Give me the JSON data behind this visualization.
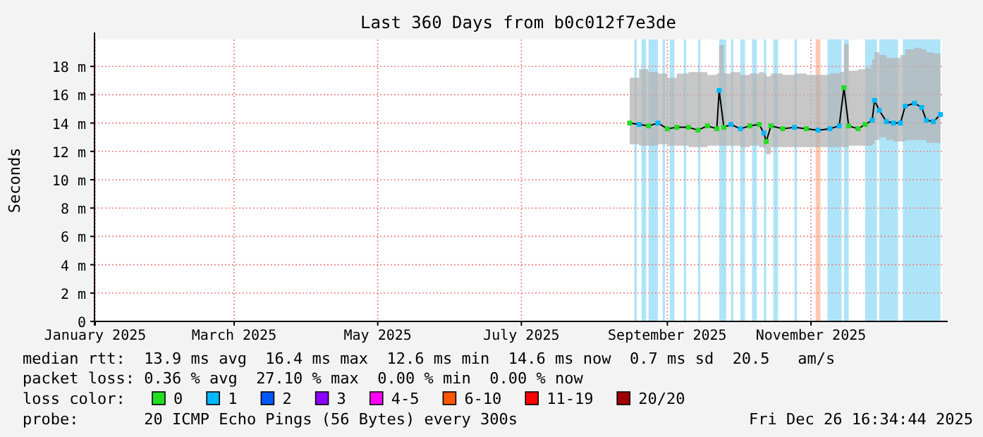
{
  "chart_data": {
    "type": "line",
    "title": "Last 360 Days from b0c012f7e3de",
    "ylabel": "Seconds",
    "legend_title": "loss color:",
    "xlim": [
      "2024-12-31T16:34",
      "2025-12-26T16:34"
    ],
    "xticks": [
      {
        "value": "2025-01-01",
        "label": "January 2025"
      },
      {
        "value": "2025-03-01",
        "label": "March 2025"
      },
      {
        "value": "2025-05-01",
        "label": "May 2025"
      },
      {
        "value": "2025-07-01",
        "label": "July 2025"
      },
      {
        "value": "2025-09-01",
        "label": "September 2025"
      },
      {
        "value": "2025-11-01",
        "label": "November 2025"
      }
    ],
    "ylim": [
      0,
      19.9
    ],
    "yticks": [
      0,
      {
        "value": 2,
        "label": "2 m"
      },
      {
        "value": 4,
        "label": "4 m"
      },
      {
        "value": 6,
        "label": "6 m"
      },
      {
        "value": 8,
        "label": "8 m"
      },
      {
        "value": 10,
        "label": "10 m"
      },
      {
        "value": 12,
        "label": "12 m"
      },
      {
        "value": 14,
        "label": "14 m"
      },
      {
        "value": 16,
        "label": "16 m"
      },
      {
        "value": 18,
        "label": "18 m"
      }
    ],
    "grid": true,
    "legend": "bottom",
    "line_style": "solid",
    "bands": [
      {
        "axis": "x",
        "from": "2025-08-18",
        "to": "2025-08-19",
        "color": "#aee4f8"
      },
      {
        "axis": "x",
        "from": "2025-08-21",
        "to": "2025-08-23",
        "color": "#aee4f8"
      },
      {
        "axis": "x",
        "from": "2025-08-24",
        "to": "2025-08-28",
        "color": "#aee4f8"
      },
      {
        "axis": "x",
        "from": "2025-08-30",
        "to": "2025-08-31",
        "color": "#aee4f8"
      },
      {
        "axis": "x",
        "from": "2025-09-02",
        "to": "2025-09-04",
        "color": "#aee4f8"
      },
      {
        "axis": "x",
        "from": "2025-09-08",
        "to": "2025-09-09",
        "color": "#aee4f8"
      },
      {
        "axis": "x",
        "from": "2025-09-14",
        "to": "2025-09-15",
        "color": "#aee4f8"
      },
      {
        "axis": "x",
        "from": "2025-09-23",
        "to": "2025-09-26",
        "color": "#aee4f8"
      },
      {
        "axis": "x",
        "from": "2025-09-28",
        "to": "2025-09-29",
        "color": "#aee4f8"
      },
      {
        "axis": "x",
        "from": "2025-10-02",
        "to": "2025-10-04",
        "color": "#aee4f8"
      },
      {
        "axis": "x",
        "from": "2025-10-07",
        "to": "2025-10-09",
        "color": "#aee4f8"
      },
      {
        "axis": "x",
        "from": "2025-10-12",
        "to": "2025-10-13",
        "color": "#aee4f8"
      },
      {
        "axis": "x",
        "from": "2025-10-16",
        "to": "2025-10-18",
        "color": "#aee4f8"
      },
      {
        "axis": "x",
        "from": "2025-10-25",
        "to": "2025-10-26",
        "color": "#aee4f8"
      },
      {
        "axis": "x",
        "from": "2025-11-03",
        "to": "2025-11-05",
        "color": "#fcc8b0"
      },
      {
        "axis": "x",
        "from": "2025-11-08",
        "to": "2025-11-14",
        "color": "#aee4f8"
      },
      {
        "axis": "x",
        "from": "2025-11-15",
        "to": "2025-11-17",
        "color": "#aee4f8"
      },
      {
        "axis": "x",
        "from": "2025-11-24",
        "to": "2025-11-29",
        "color": "#aee4f8"
      },
      {
        "axis": "x",
        "from": "2025-11-30",
        "to": "2025-12-08",
        "color": "#aee4f8"
      },
      {
        "axis": "x",
        "from": "2025-12-10",
        "to": "2025-12-26",
        "color": "#aee4f8"
      }
    ],
    "series": [
      {
        "color": "#000000",
        "x": [
          "2025-08-16",
          "2025-08-20",
          "2025-08-24",
          "2025-08-28",
          "2025-09-01",
          "2025-09-05",
          "2025-09-10",
          "2025-09-14",
          "2025-09-18",
          "2025-09-22",
          "2025-09-23",
          "2025-09-25",
          "2025-09-28",
          "2025-10-02",
          "2025-10-06",
          "2025-10-10",
          "2025-10-12",
          "2025-10-13",
          "2025-10-15",
          "2025-10-20",
          "2025-10-25",
          "2025-10-30",
          "2025-11-04",
          "2025-11-09",
          "2025-11-13",
          "2025-11-15",
          "2025-11-17",
          "2025-11-21",
          "2025-11-24",
          "2025-11-27",
          "2025-11-28",
          "2025-11-30",
          "2025-12-03",
          "2025-12-06",
          "2025-12-09",
          "2025-12-11",
          "2025-12-15",
          "2025-12-18",
          "2025-12-20",
          "2025-12-23",
          "2025-12-26"
        ],
        "values": [
          14.0,
          13.9,
          13.8,
          14.0,
          13.6,
          13.7,
          13.7,
          13.5,
          13.8,
          13.6,
          16.3,
          13.7,
          13.9,
          13.6,
          13.8,
          13.9,
          13.3,
          12.7,
          13.8,
          13.6,
          13.7,
          13.6,
          13.5,
          13.6,
          13.8,
          16.5,
          13.8,
          13.6,
          13.9,
          14.2,
          15.6,
          14.9,
          14.1,
          14.0,
          14.0,
          15.2,
          15.4,
          15.1,
          14.2,
          14.1,
          14.6
        ],
        "lower": [
          12.5,
          12.4,
          12.4,
          12.5,
          12.4,
          12.4,
          12.3,
          12.3,
          12.4,
          12.4,
          12.4,
          12.4,
          12.4,
          12.3,
          12.4,
          12.3,
          12.2,
          11.8,
          12.3,
          12.3,
          12.3,
          12.3,
          12.3,
          12.3,
          12.3,
          12.3,
          12.4,
          12.4,
          12.4,
          12.5,
          12.8,
          13.0,
          12.8,
          12.7,
          12.7,
          12.8,
          12.8,
          12.8,
          12.6,
          12.6,
          12.6
        ],
        "upper": [
          17.2,
          17.8,
          17.6,
          17.5,
          17.2,
          17.5,
          17.6,
          17.6,
          17.4,
          17.5,
          19.5,
          17.5,
          17.6,
          17.4,
          17.5,
          17.6,
          17.5,
          17.3,
          17.5,
          17.4,
          17.5,
          17.4,
          17.4,
          17.5,
          17.6,
          19.6,
          17.7,
          17.8,
          17.9,
          18.5,
          19.0,
          18.8,
          18.6,
          18.6,
          18.8,
          19.2,
          19.3,
          19.2,
          19.0,
          18.9,
          18.9
        ]
      },
      {
        "type": "scatter",
        "name": "0",
        "color": "#22dd22",
        "marker": "square",
        "x": [
          "2025-08-16",
          "2025-08-24",
          "2025-09-01",
          "2025-09-05",
          "2025-09-10",
          "2025-09-14",
          "2025-09-18",
          "2025-09-22",
          "2025-09-25",
          "2025-10-06",
          "2025-10-10",
          "2025-10-13",
          "2025-10-15",
          "2025-10-20",
          "2025-10-30",
          "2025-11-15",
          "2025-11-17",
          "2025-11-21",
          "2025-11-24"
        ],
        "values": [
          14.0,
          13.8,
          13.6,
          13.7,
          13.7,
          13.5,
          13.8,
          13.6,
          13.7,
          13.8,
          13.9,
          12.7,
          13.8,
          13.6,
          13.6,
          16.5,
          13.8,
          13.6,
          13.9
        ]
      },
      {
        "type": "scatter",
        "name": "1",
        "color": "#00b8ff",
        "marker": "square",
        "x": [
          "2025-08-20",
          "2025-08-28",
          "2025-09-23",
          "2025-09-28",
          "2025-10-02",
          "2025-10-12",
          "2025-10-25",
          "2025-11-04",
          "2025-11-09",
          "2025-11-13",
          "2025-11-27",
          "2025-11-28",
          "2025-11-30",
          "2025-12-03",
          "2025-12-06",
          "2025-12-09",
          "2025-12-11",
          "2025-12-15",
          "2025-12-18",
          "2025-12-20",
          "2025-12-23",
          "2025-12-26"
        ],
        "values": [
          13.9,
          14.0,
          16.3,
          13.9,
          13.6,
          13.3,
          13.7,
          13.5,
          13.6,
          13.8,
          14.2,
          15.6,
          14.9,
          14.1,
          14.0,
          14.0,
          15.2,
          15.4,
          15.1,
          14.2,
          14.1,
          14.6
        ]
      },
      {
        "type": "scatter",
        "name": "2",
        "color": "#0059ff",
        "marker": "square"
      },
      {
        "type": "scatter",
        "name": "3",
        "color": "#8c00ff",
        "marker": "square"
      },
      {
        "type": "scatter",
        "name": "4-5",
        "color": "#ff00ff",
        "marker": "square"
      },
      {
        "type": "scatter",
        "name": "6-10",
        "color": "#ff5500",
        "marker": "square"
      },
      {
        "type": "scatter",
        "name": "11-19",
        "color": "#ff0000",
        "marker": "square"
      },
      {
        "type": "scatter",
        "name": "20/20",
        "color": "#a10000",
        "marker": "square"
      }
    ],
    "annotations": [
      "median rtt:  13.9 ms avg  16.4 ms max  12.6 ms min  14.6 ms now  0.7 ms sd  20.5   am/s",
      "packet loss: 0.36 % avg  27.10 % max  0.00 % min  0.00 % now",
      "probe:       20 ICMP Echo Pings (56 Bytes) every 300s",
      "Fri Dec 26 16:34:44 2025"
    ]
  }
}
